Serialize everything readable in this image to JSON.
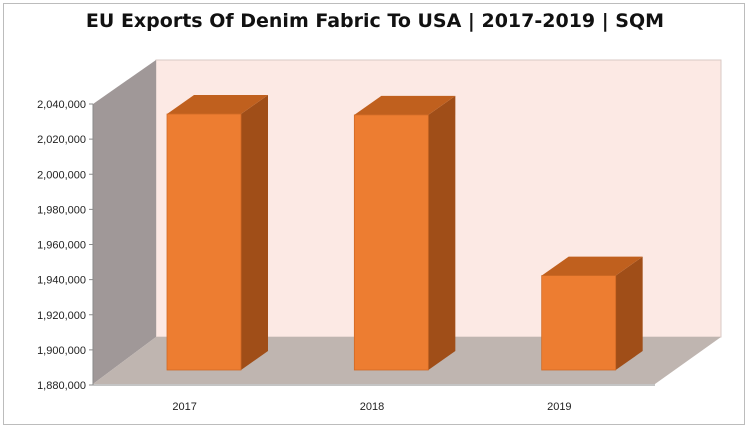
{
  "chart_data": {
    "type": "bar",
    "title": "EU Exports Of Denim Fabric To USA | 2017-2019 | SQM",
    "xlabel": "",
    "ylabel": "",
    "categories": [
      "2017",
      "2018",
      "2019"
    ],
    "values": [
      2036000,
      2035500,
      1944000
    ],
    "ylim": [
      1880000,
      2040000
    ],
    "y_ticks": [
      "2,040,000",
      "2,020,000",
      "2,000,000",
      "1,980,000",
      "1,960,000",
      "1,940,000",
      "1,920,000",
      "1,900,000",
      "1,880,000"
    ],
    "grid": false,
    "legend": "none",
    "colors": {
      "bar_front": "#ED7D31",
      "bar_top": "#C0601E",
      "bar_side": "#A04E18",
      "back_wall": "#FCE9E4",
      "side_wall": "#A09898",
      "floor": "#BFB5B0"
    }
  }
}
